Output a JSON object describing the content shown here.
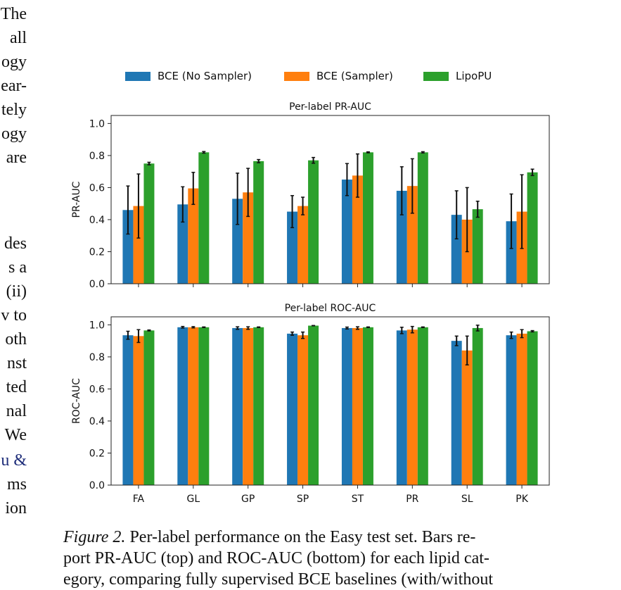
{
  "left_column_fragments": [
    "The",
    "all",
    "ogy",
    "ear-",
    "tely",
    "ogy",
    "are",
    "des",
    "s a",
    "(ii)",
    "v to",
    "oth",
    "nst",
    "ted",
    "nal",
    "We",
    "u &",
    "ms",
    "ion"
  ],
  "legend": [
    {
      "label": "BCE (No Sampler)",
      "color": "#1f77b4"
    },
    {
      "label": "BCE (Sampler)",
      "color": "#ff7f0e"
    },
    {
      "label": "LipoPU",
      "color": "#2ca02c"
    }
  ],
  "chart_data": [
    {
      "type": "bar",
      "title": "Per-label PR-AUC",
      "ylabel": "PR-AUC",
      "xlabel": "",
      "ylim": [
        0.0,
        1.05
      ],
      "yticks": [
        "0.0",
        "0.2",
        "0.4",
        "0.6",
        "0.8",
        "1.0"
      ],
      "categories": [
        "FA",
        "GL",
        "GP",
        "SP",
        "ST",
        "PR",
        "SL",
        "PK"
      ],
      "show_xtick_labels": false,
      "series": [
        {
          "name": "BCE (No Sampler)",
          "color": "#1f77b4",
          "values": [
            0.46,
            0.495,
            0.53,
            0.45,
            0.65,
            0.58,
            0.43,
            0.39
          ],
          "errors": [
            0.15,
            0.11,
            0.16,
            0.1,
            0.1,
            0.15,
            0.15,
            0.17
          ]
        },
        {
          "name": "BCE (Sampler)",
          "color": "#ff7f0e",
          "values": [
            0.485,
            0.595,
            0.57,
            0.485,
            0.675,
            0.61,
            0.4,
            0.45
          ],
          "errors": [
            0.2,
            0.1,
            0.15,
            0.055,
            0.135,
            0.17,
            0.2,
            0.23
          ]
        },
        {
          "name": "LipoPU",
          "color": "#2ca02c",
          "values": [
            0.75,
            0.82,
            0.765,
            0.77,
            0.82,
            0.82,
            0.465,
            0.695
          ],
          "errors": [
            0.008,
            0.005,
            0.01,
            0.018,
            0.003,
            0.004,
            0.05,
            0.02
          ]
        }
      ]
    },
    {
      "type": "bar",
      "title": "Per-label ROC-AUC",
      "ylabel": "ROC-AUC",
      "xlabel": "",
      "ylim": [
        0.0,
        1.05
      ],
      "yticks": [
        "0.0",
        "0.2",
        "0.4",
        "0.6",
        "0.8",
        "1.0"
      ],
      "categories": [
        "FA",
        "GL",
        "GP",
        "SP",
        "ST",
        "PR",
        "SL",
        "PK"
      ],
      "show_xtick_labels": true,
      "series": [
        {
          "name": "BCE (No Sampler)",
          "color": "#1f77b4",
          "values": [
            0.935,
            0.985,
            0.98,
            0.945,
            0.98,
            0.965,
            0.9,
            0.935
          ],
          "errors": [
            0.025,
            0.005,
            0.008,
            0.01,
            0.006,
            0.02,
            0.03,
            0.02
          ]
        },
        {
          "name": "BCE (Sampler)",
          "color": "#ff7f0e",
          "values": [
            0.93,
            0.985,
            0.98,
            0.935,
            0.98,
            0.97,
            0.84,
            0.945
          ],
          "errors": [
            0.04,
            0.004,
            0.008,
            0.02,
            0.008,
            0.02,
            0.09,
            0.025
          ]
        },
        {
          "name": "LipoPU",
          "color": "#2ca02c",
          "values": [
            0.965,
            0.985,
            0.985,
            0.995,
            0.985,
            0.985,
            0.98,
            0.96
          ],
          "errors": [
            0.003,
            0.002,
            0.002,
            0.001,
            0.002,
            0.002,
            0.018,
            0.004
          ]
        }
      ]
    }
  ],
  "caption": {
    "label": "Figure 2.",
    "lines": [
      "Per-label performance on the Easy test set. Bars re-",
      "port PR-AUC (top) and ROC-AUC (bottom) for each lipid cat-",
      "egory, comparing fully supervised BCE baselines (with/without"
    ]
  }
}
